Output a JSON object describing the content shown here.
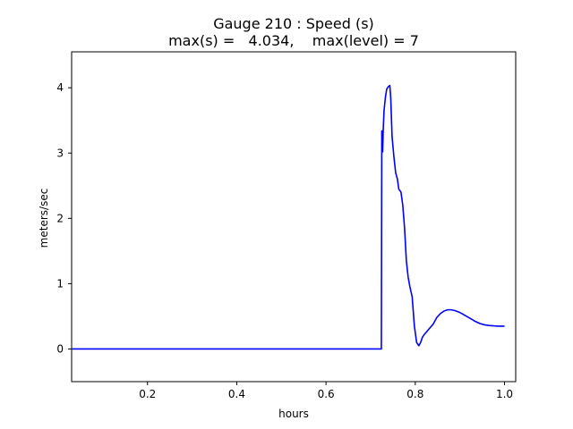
{
  "chart_data": {
    "type": "line",
    "title_line1": "Gauge 210 : Speed (s)",
    "title_line2": "max(s) =   4.034,    max(level) = 7",
    "xlabel": "hours",
    "ylabel": "meters/sec",
    "xlim": [
      0.03,
      1.025
    ],
    "ylim": [
      -0.5,
      4.55
    ],
    "xticks": [
      0.2,
      0.4,
      0.6,
      0.8,
      1.0
    ],
    "xtick_labels": [
      "0.2",
      "0.4",
      "0.6",
      "0.8",
      "1.0"
    ],
    "yticks": [
      0,
      1,
      2,
      3,
      4
    ],
    "ytick_labels": [
      "0",
      "1",
      "2",
      "3",
      "4"
    ],
    "grid": false,
    "series": [
      {
        "color": "#0000ff",
        "x": [
          0.03,
          0.1,
          0.2,
          0.3,
          0.4,
          0.5,
          0.6,
          0.7,
          0.724,
          0.725,
          0.727,
          0.728,
          0.73,
          0.733,
          0.736,
          0.74,
          0.743,
          0.745,
          0.748,
          0.752,
          0.756,
          0.76,
          0.763,
          0.768,
          0.772,
          0.776,
          0.78,
          0.784,
          0.788,
          0.793,
          0.798,
          0.803,
          0.808,
          0.812,
          0.816,
          0.82,
          0.825,
          0.83,
          0.835,
          0.84,
          0.848,
          0.856,
          0.864,
          0.872,
          0.88,
          0.888,
          0.896,
          0.905,
          0.915,
          0.925,
          0.935,
          0.945,
          0.955,
          0.965,
          0.975,
          0.985,
          0.995,
          1.0
        ],
        "y": [
          0,
          0,
          0,
          0,
          0,
          0,
          0,
          0,
          0,
          3.34,
          3.02,
          3.33,
          3.65,
          3.85,
          3.98,
          4.02,
          4.034,
          3.85,
          3.25,
          2.95,
          2.7,
          2.6,
          2.45,
          2.4,
          2.2,
          1.85,
          1.35,
          1.1,
          0.95,
          0.8,
          0.35,
          0.1,
          0.05,
          0.1,
          0.18,
          0.22,
          0.26,
          0.3,
          0.34,
          0.38,
          0.48,
          0.54,
          0.58,
          0.6,
          0.6,
          0.59,
          0.57,
          0.54,
          0.5,
          0.46,
          0.42,
          0.39,
          0.37,
          0.36,
          0.355,
          0.35,
          0.35,
          0.35
        ]
      }
    ]
  }
}
